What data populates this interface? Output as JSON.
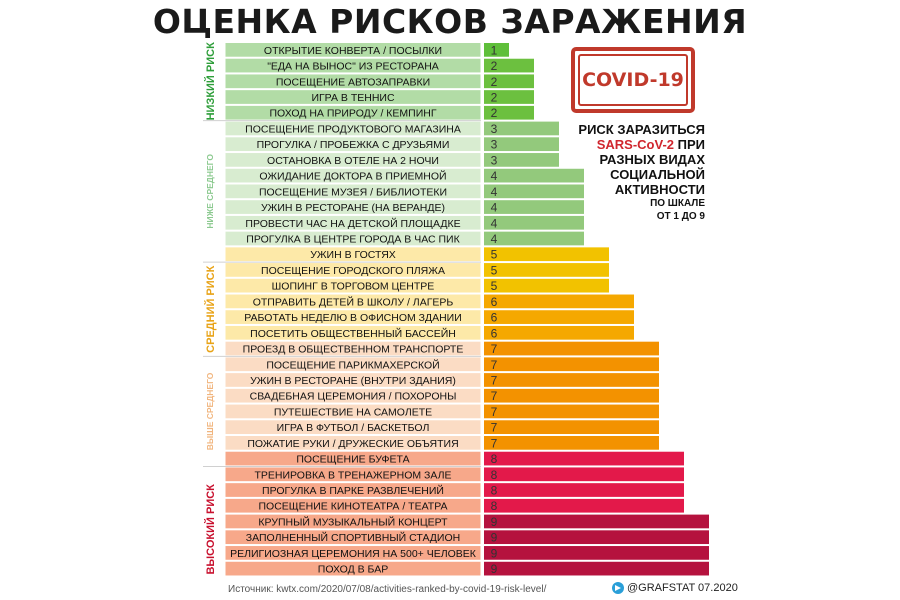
{
  "page": {
    "title": "ОЦЕНКА РИСКОВ ЗАРАЖЕНИЯ",
    "stamp": "COVID-19",
    "info": {
      "line1": "РИСК ЗАРАЗИТЬСЯ",
      "line2_red": "SARS-CoV-2",
      "line2_rest": " ПРИ",
      "line3": "РАЗНЫХ ВИДАХ",
      "line4": "СОЦИАЛЬНОЙ",
      "line5": "АКТИВНОСТИ",
      "line6": "ПО ШКАЛЕ",
      "line7": "ОТ 1 ДО 9"
    },
    "source": "Источник: kwtx.com/2020/07/08/activities-ranked-by-covid-19-risk-level/",
    "brand": "@GRAFSTAT 07.2020"
  },
  "chart_data": {
    "type": "bar",
    "orientation": "horizontal",
    "xlim": [
      0,
      9
    ],
    "tiers": [
      {
        "label": "НИЗКИЙ РИСК",
        "color": "#2e9e3a",
        "start": 0,
        "end": 4
      },
      {
        "label": "НИЖЕ СРЕДНЕГО",
        "color": "#8bc98f",
        "start": 5,
        "end": 13
      },
      {
        "label": "СРЕДНИЙ РИСК",
        "color": "#e8a317",
        "start": 14,
        "end": 19
      },
      {
        "label": "ВЫШЕ СРЕДНЕГО",
        "color": "#f1b57e",
        "start": 20,
        "end": 26
      },
      {
        "label": "ВЫСОКИЙ РИСК",
        "color": "#c8102e",
        "start": 27,
        "end": 34
      }
    ],
    "value_colors": {
      "1": "#5fbf3a",
      "2": "#6cc03f",
      "3": "#93c97c",
      "4": "#93c97c",
      "5": "#f2c200",
      "6": "#f5a800",
      "7": "#f39200",
      "8": "#e3194a",
      "9": "#b5123e"
    },
    "label_colors": {
      "1": "#b2dca6",
      "2": "#b2dca6",
      "3": "#d8ecd0",
      "4": "#d8ecd0",
      "5": "#fde9a8",
      "6": "#fde9a8",
      "7": "#fbdcc4",
      "8": "#f7a88a",
      "9": "#f7a88a"
    },
    "categories": [
      "ОТКРЫТИЕ КОНВЕРТА / ПОСЫЛКИ",
      "\"ЕДА НА ВЫНОС\" ИЗ РЕСТОРАНА",
      "ПОСЕЩЕНИЕ АВТОЗАПРАВКИ",
      "ИГРА В ТЕННИС",
      "ПОХОД НА ПРИРОДУ / КЕМПИНГ",
      "ПОСЕЩЕНИЕ ПРОДУКТОВОГО МАГАЗИНА",
      "ПРОГУЛКА / ПРОБЕЖКА С ДРУЗЬЯМИ",
      "ОСТАНОВКА В ОТЕЛЕ НА 2 НОЧИ",
      "ОЖИДАНИЕ ДОКТОРА В ПРИЕМНОЙ",
      "ПОСЕЩЕНИЕ МУЗЕЯ / БИБЛИОТЕКИ",
      "УЖИН В РЕСТОРАНЕ (НА ВЕРАНДЕ)",
      "ПРОВЕСТИ ЧАС НА ДЕТСКОЙ ПЛОЩАДКЕ",
      "ПРОГУЛКА В ЦЕНТРЕ ГОРОДА В ЧАС ПИК",
      "УЖИН В ГОСТЯХ",
      "ПОСЕЩЕНИЕ ГОРОДСКОГО ПЛЯЖА",
      "ШОПИНГ В ТОРГОВОМ ЦЕНТРЕ",
      "ОТПРАВИТЬ ДЕТЕЙ В ШКОЛУ / ЛАГЕРЬ",
      "РАБОТАТЬ НЕДЕЛЮ В ОФИСНОМ ЗДАНИИ",
      "ПОСЕТИТЬ ОБЩЕСТВЕННЫЙ БАССЕЙН",
      "ПРОЕЗД В ОБЩЕСТВЕННОМ ТРАНСПОРТЕ",
      "ПОСЕЩЕНИЕ ПАРИКМАХЕРСКОЙ",
      "УЖИН В РЕСТОРАНЕ (ВНУТРИ ЗДАНИЯ)",
      "СВАДЕБНАЯ ЦЕРЕМОНИЯ / ПОХОРОНЫ",
      "ПУТЕШЕСТВИЕ НА САМОЛЕТЕ",
      "ИГРА В ФУТБОЛ / БАСКЕТБОЛ",
      "ПОЖАТИЕ РУКИ / ДРУЖЕСКИЕ ОБЪЯТИЯ",
      "ПОСЕЩЕНИЕ БУФЕТА",
      "ТРЕНИРОВКА В ТРЕНАЖЕРНОМ ЗАЛЕ",
      "ПРОГУЛКА В ПАРКЕ РАЗВЛЕЧЕНИЙ",
      "ПОСЕЩЕНИЕ КИНОТЕАТРА / ТЕАТРА",
      "КРУПНЫЙ МУЗЫКАЛЬНЫЙ КОНЦЕРТ",
      "ЗАПОЛНЕННЫЙ СПОРТИВНЫЙ СТАДИОН",
      "РЕЛИГИОЗНАЯ ЦЕРЕМОНИЯ НА 500+ ЧЕЛОВЕК",
      "ПОХОД В БАР"
    ],
    "values": [
      1,
      2,
      2,
      2,
      2,
      3,
      3,
      3,
      4,
      4,
      4,
      4,
      4,
      5,
      5,
      5,
      6,
      6,
      6,
      7,
      7,
      7,
      7,
      7,
      7,
      7,
      8,
      8,
      8,
      8,
      9,
      9,
      9,
      9
    ]
  }
}
